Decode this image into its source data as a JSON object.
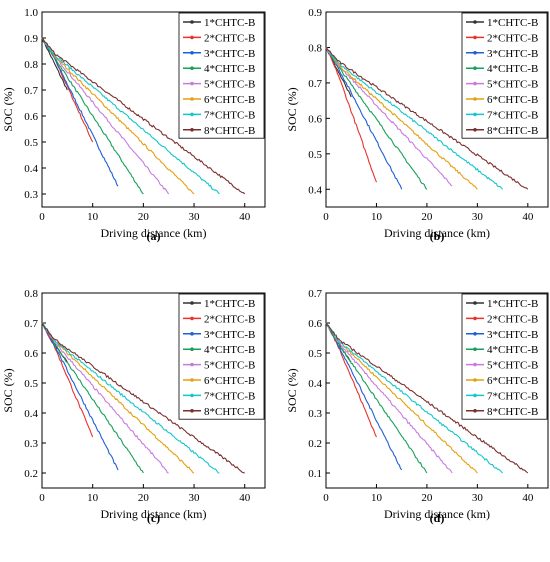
{
  "legend_labels": [
    "1*CHTC-B",
    "2*CHTC-B",
    "3*CHTC-B",
    "4*CHTC-B",
    "5*CHTC-B",
    "6*CHTC-B",
    "7*CHTC-B",
    "8*CHTC-B"
  ],
  "series_colors": [
    "#333333",
    "#e8332a",
    "#1f5fd6",
    "#17a05a",
    "#c77be0",
    "#e6a010",
    "#14c6cc",
    "#7a2f2f"
  ],
  "chart_data": [
    {
      "type": "line",
      "panel_label": "(a)",
      "xlabel": "Driving distance (km)",
      "ylabel": "SOC (%)",
      "xlim": [
        0,
        44
      ],
      "ylim": [
        0.25,
        1.0
      ],
      "xticks": [
        "0",
        "10",
        "20",
        "30",
        "40"
      ],
      "yticks": [
        "0.3",
        "0.4",
        "0.5",
        "0.6",
        "0.7",
        "0.8",
        "0.9",
        "1.0"
      ],
      "legend_position": "top-right",
      "series": [
        {
          "name": "1*CHTC-B",
          "x": [
            0,
            2.5,
            5
          ],
          "y": [
            0.9,
            0.8,
            0.7
          ]
        },
        {
          "name": "2*CHTC-B",
          "x": [
            0,
            2.5,
            10
          ],
          "y": [
            0.9,
            0.82,
            0.5
          ]
        },
        {
          "name": "3*CHTC-B",
          "x": [
            0,
            2.5,
            15
          ],
          "y": [
            0.9,
            0.82,
            0.33
          ]
        },
        {
          "name": "4*CHTC-B",
          "x": [
            0,
            2.5,
            20
          ],
          "y": [
            0.9,
            0.825,
            0.3
          ]
        },
        {
          "name": "5*CHTC-B",
          "x": [
            0,
            2.5,
            25
          ],
          "y": [
            0.9,
            0.83,
            0.3
          ]
        },
        {
          "name": "6*CHTC-B",
          "x": [
            0,
            2.5,
            30
          ],
          "y": [
            0.9,
            0.83,
            0.3
          ]
        },
        {
          "name": "7*CHTC-B",
          "x": [
            0,
            2.5,
            35
          ],
          "y": [
            0.9,
            0.835,
            0.3
          ]
        },
        {
          "name": "8*CHTC-B",
          "x": [
            0,
            2.5,
            40
          ],
          "y": [
            0.9,
            0.84,
            0.3
          ]
        }
      ]
    },
    {
      "type": "line",
      "panel_label": "(b)",
      "xlabel": "Driving distance (km)",
      "ylabel": "SOC (%)",
      "xlim": [
        0,
        44
      ],
      "ylim": [
        0.35,
        0.9
      ],
      "xticks": [
        "0",
        "10",
        "20",
        "30",
        "40"
      ],
      "yticks": [
        "0.4",
        "0.5",
        "0.6",
        "0.7",
        "0.8",
        "0.9"
      ],
      "legend_position": "top-right",
      "series": [
        {
          "name": "1*CHTC-B",
          "x": [
            0,
            2.5,
            5
          ],
          "y": [
            0.8,
            0.73,
            0.66
          ]
        },
        {
          "name": "2*CHTC-B",
          "x": [
            0,
            2.5,
            10
          ],
          "y": [
            0.8,
            0.72,
            0.42
          ]
        },
        {
          "name": "3*CHTC-B",
          "x": [
            0,
            2.5,
            15
          ],
          "y": [
            0.8,
            0.74,
            0.4
          ]
        },
        {
          "name": "4*CHTC-B",
          "x": [
            0,
            2.5,
            20
          ],
          "y": [
            0.8,
            0.745,
            0.4
          ]
        },
        {
          "name": "5*CHTC-B",
          "x": [
            0,
            2.5,
            25
          ],
          "y": [
            0.8,
            0.75,
            0.41
          ]
        },
        {
          "name": "6*CHTC-B",
          "x": [
            0,
            2.5,
            30
          ],
          "y": [
            0.8,
            0.75,
            0.4
          ]
        },
        {
          "name": "7*CHTC-B",
          "x": [
            0,
            2.5,
            35
          ],
          "y": [
            0.8,
            0.755,
            0.4
          ]
        },
        {
          "name": "8*CHTC-B",
          "x": [
            0,
            2.5,
            40
          ],
          "y": [
            0.8,
            0.76,
            0.4
          ]
        }
      ]
    },
    {
      "type": "line",
      "panel_label": "(c)",
      "xlabel": "Driving distance (km)",
      "ylabel": "SOC (%)",
      "xlim": [
        0,
        44
      ],
      "ylim": [
        0.15,
        0.8
      ],
      "xticks": [
        "0",
        "10",
        "20",
        "30",
        "40"
      ],
      "yticks": [
        "0.2",
        "0.3",
        "0.4",
        "0.5",
        "0.6",
        "0.7",
        "0.8"
      ],
      "legend_position": "top-right",
      "series": [
        {
          "name": "1*CHTC-B",
          "x": [
            0,
            2.5,
            5
          ],
          "y": [
            0.7,
            0.63,
            0.57
          ]
        },
        {
          "name": "2*CHTC-B",
          "x": [
            0,
            2.5,
            10
          ],
          "y": [
            0.7,
            0.62,
            0.32
          ]
        },
        {
          "name": "3*CHTC-B",
          "x": [
            0,
            2.5,
            15
          ],
          "y": [
            0.7,
            0.625,
            0.21
          ]
        },
        {
          "name": "4*CHTC-B",
          "x": [
            0,
            2.5,
            20
          ],
          "y": [
            0.7,
            0.63,
            0.2
          ]
        },
        {
          "name": "5*CHTC-B",
          "x": [
            0,
            2.5,
            25
          ],
          "y": [
            0.7,
            0.635,
            0.2
          ]
        },
        {
          "name": "6*CHTC-B",
          "x": [
            0,
            2.5,
            30
          ],
          "y": [
            0.7,
            0.64,
            0.2
          ]
        },
        {
          "name": "7*CHTC-B",
          "x": [
            0,
            2.5,
            35
          ],
          "y": [
            0.7,
            0.64,
            0.2
          ]
        },
        {
          "name": "8*CHTC-B",
          "x": [
            0,
            2.5,
            40
          ],
          "y": [
            0.7,
            0.645,
            0.2
          ]
        }
      ]
    },
    {
      "type": "line",
      "panel_label": "(d)",
      "xlabel": "Driving distance (km)",
      "ylabel": "SOC (%)",
      "xlim": [
        0,
        44
      ],
      "ylim": [
        0.05,
        0.7
      ],
      "xticks": [
        "0",
        "10",
        "20",
        "30",
        "40"
      ],
      "yticks": [
        "0.1",
        "0.2",
        "0.3",
        "0.4",
        "0.5",
        "0.6",
        "0.7"
      ],
      "legend_position": "top-right",
      "series": [
        {
          "name": "1*CHTC-B",
          "x": [
            0,
            2.5,
            5
          ],
          "y": [
            0.6,
            0.53,
            0.47
          ]
        },
        {
          "name": "2*CHTC-B",
          "x": [
            0,
            2.5,
            10
          ],
          "y": [
            0.6,
            0.52,
            0.22
          ]
        },
        {
          "name": "3*CHTC-B",
          "x": [
            0,
            2.5,
            15
          ],
          "y": [
            0.6,
            0.525,
            0.11
          ]
        },
        {
          "name": "4*CHTC-B",
          "x": [
            0,
            2.5,
            20
          ],
          "y": [
            0.6,
            0.53,
            0.1
          ]
        },
        {
          "name": "5*CHTC-B",
          "x": [
            0,
            2.5,
            25
          ],
          "y": [
            0.6,
            0.535,
            0.1
          ]
        },
        {
          "name": "6*CHTC-B",
          "x": [
            0,
            2.5,
            30
          ],
          "y": [
            0.6,
            0.54,
            0.1
          ]
        },
        {
          "name": "7*CHTC-B",
          "x": [
            0,
            2.5,
            35
          ],
          "y": [
            0.6,
            0.54,
            0.1
          ]
        },
        {
          "name": "8*CHTC-B",
          "x": [
            0,
            2.5,
            40
          ],
          "y": [
            0.6,
            0.545,
            0.1
          ]
        }
      ]
    }
  ]
}
